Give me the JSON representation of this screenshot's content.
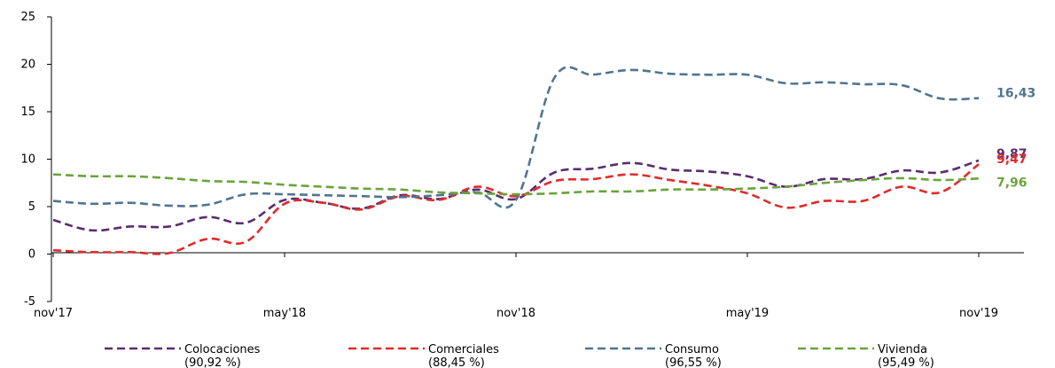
{
  "chart_data": {
    "type": "line",
    "title": "",
    "xlabel": "",
    "ylabel": "",
    "ylim": [
      -5,
      25
    ],
    "yticks": [
      "-5",
      "0",
      "5",
      "10",
      "15",
      "20",
      "25"
    ],
    "x_tick_labels": [
      "nov'17",
      "may'18",
      "nov'18",
      "may'19",
      "nov'19"
    ],
    "grid": false,
    "legend_position": "bottom",
    "x": [
      "nov-17",
      "dic-17",
      "ene-18",
      "feb-18",
      "mar-18",
      "abr-18",
      "may-18",
      "jun-18",
      "jul-18",
      "ago-18",
      "sep-18",
      "oct-18",
      "nov-18",
      "dic-18",
      "ene-19",
      "feb-19",
      "mar-19",
      "abr-19",
      "may-19",
      "jun-19",
      "jul-19",
      "ago-19",
      "sep-19",
      "oct-19",
      "nov-19"
    ],
    "series": [
      {
        "name": "Colocaciones",
        "legend_sub": "(90,92 %)",
        "color": "#5b2c6f",
        "end_label": "9,87",
        "values": [
          3.6,
          2.5,
          2.9,
          2.9,
          3.9,
          3.3,
          5.7,
          5.4,
          4.8,
          6.2,
          5.8,
          6.8,
          5.8,
          8.6,
          9.0,
          9.6,
          8.9,
          8.7,
          8.2,
          7.1,
          7.9,
          7.9,
          8.8,
          8.6,
          9.87
        ]
      },
      {
        "name": "Comerciales",
        "legend_sub": "(88,45 %)",
        "color": "#e02b2b",
        "end_label": "9,47",
        "values": [
          0.4,
          0.2,
          0.2,
          0.1,
          1.6,
          1.3,
          5.3,
          5.4,
          4.7,
          6.1,
          5.7,
          7.1,
          6.1,
          7.7,
          7.9,
          8.4,
          7.8,
          7.2,
          6.4,
          4.9,
          5.6,
          5.6,
          7.1,
          6.5,
          9.47
        ]
      },
      {
        "name": "Consumo",
        "legend_sub": "(96,55 %)",
        "color": "#4f7590",
        "end_label": "16,43",
        "values": [
          5.6,
          5.3,
          5.4,
          5.1,
          5.2,
          6.3,
          6.3,
          6.2,
          6.1,
          6.0,
          6.2,
          6.5,
          5.7,
          18.6,
          18.9,
          19.4,
          19.0,
          18.9,
          18.9,
          18.0,
          18.1,
          17.9,
          17.8,
          16.4,
          16.43
        ]
      },
      {
        "name": "Vivienda",
        "legend_sub": "(95,49 %)",
        "color": "#6aa33b",
        "end_label": "7,96",
        "values": [
          8.4,
          8.2,
          8.2,
          8.0,
          7.7,
          7.6,
          7.3,
          7.1,
          6.9,
          6.8,
          6.5,
          6.4,
          6.3,
          6.4,
          6.6,
          6.6,
          6.8,
          6.8,
          6.9,
          7.1,
          7.5,
          7.8,
          8.0,
          7.8,
          7.96
        ]
      }
    ]
  }
}
